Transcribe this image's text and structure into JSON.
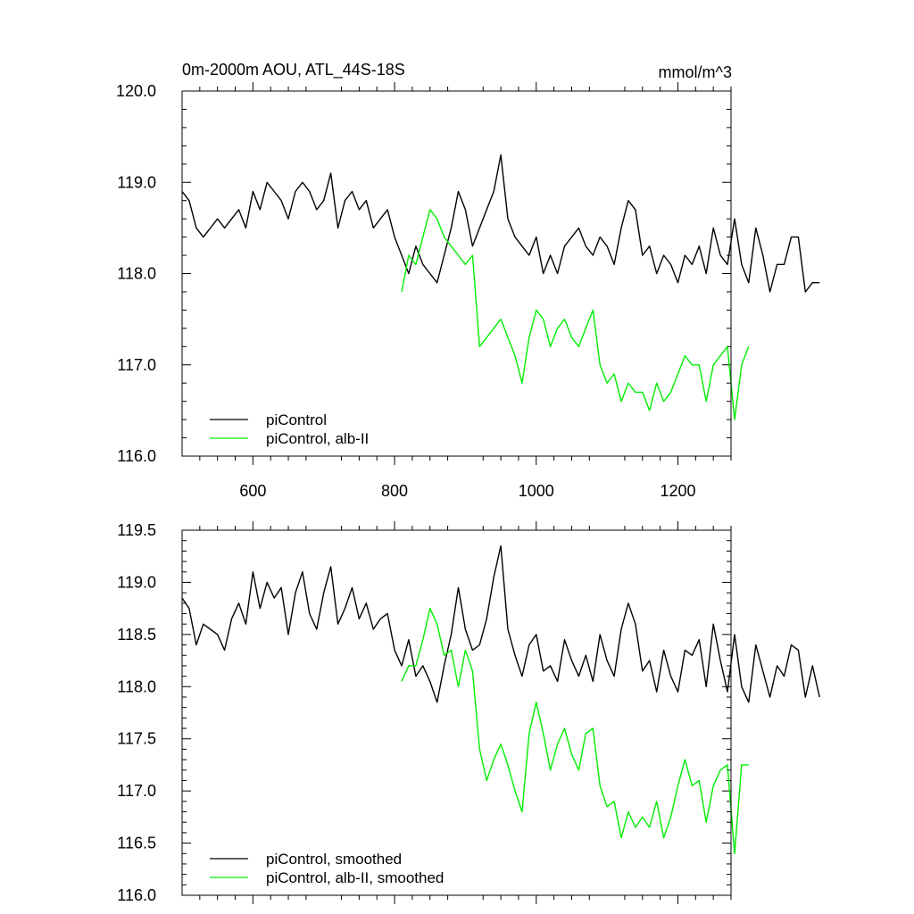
{
  "chart_data": [
    {
      "type": "line",
      "title": "0m-2000m AOU, ATL_44S-18S",
      "units": "mmol/m^3",
      "xlabel": "",
      "ylabel": "",
      "xlim": [
        500,
        1275
      ],
      "ylim": [
        116.0,
        120.0
      ],
      "x_ticks": [
        600,
        800,
        1000,
        1200
      ],
      "x_tick_labels": [
        "600",
        "800",
        "1000",
        "1200"
      ],
      "y_ticks": [
        116.0,
        117.0,
        118.0,
        119.0,
        120.0
      ],
      "y_tick_labels": [
        "116.0",
        "117.0",
        "118.0",
        "119.0",
        "120.0"
      ],
      "grid": false,
      "legend_position": "bottom-left",
      "series": [
        {
          "name": "piControl",
          "color": "#000000",
          "x_start": 500,
          "x_step": 10,
          "values": [
            118.9,
            118.8,
            118.5,
            118.4,
            118.5,
            118.6,
            118.5,
            118.6,
            118.7,
            118.5,
            118.9,
            118.7,
            119.0,
            118.9,
            118.8,
            118.6,
            118.9,
            119.0,
            118.9,
            118.7,
            118.8,
            119.1,
            118.5,
            118.8,
            118.9,
            118.7,
            118.8,
            118.5,
            118.6,
            118.7,
            118.4,
            118.2,
            118.0,
            118.3,
            118.1,
            118.0,
            117.9,
            118.2,
            118.5,
            118.9,
            118.7,
            118.3,
            118.5,
            118.7,
            118.9,
            119.3,
            118.6,
            118.4,
            118.3,
            118.2,
            118.4,
            118.0,
            118.2,
            118.0,
            118.3,
            118.4,
            118.5,
            118.3,
            118.2,
            118.4,
            118.3,
            118.1,
            118.5,
            118.8,
            118.7,
            118.2,
            118.3,
            118.0,
            118.2,
            118.1,
            117.9,
            118.2,
            118.1,
            118.3,
            118.0,
            118.5,
            118.2,
            118.1,
            118.6,
            118.1,
            117.9,
            118.5,
            118.2,
            117.8,
            118.1,
            118.1,
            118.4,
            118.4,
            117.8,
            117.9,
            117.9
          ]
        },
        {
          "name": "piControl, alb-II",
          "color": "#00ee00",
          "x_start": 810,
          "x_step": 10,
          "values": [
            117.8,
            118.2,
            118.1,
            118.4,
            118.7,
            118.6,
            118.4,
            118.3,
            118.2,
            118.1,
            118.2,
            117.2,
            117.3,
            117.4,
            117.5,
            117.3,
            117.1,
            116.8,
            117.3,
            117.6,
            117.5,
            117.2,
            117.4,
            117.5,
            117.3,
            117.2,
            117.4,
            117.6,
            117.0,
            116.8,
            116.9,
            116.6,
            116.8,
            116.7,
            116.7,
            116.5,
            116.8,
            116.6,
            116.7,
            116.9,
            117.1,
            117.0,
            117.0,
            116.6,
            117.0,
            117.1,
            117.2,
            116.4,
            117.0,
            117.2
          ]
        }
      ]
    },
    {
      "type": "line",
      "title": "",
      "xlabel": "",
      "ylabel": "",
      "xlim": [
        500,
        1275
      ],
      "ylim": [
        116.0,
        119.5
      ],
      "x_ticks": [
        600,
        800,
        1000,
        1200
      ],
      "y_ticks": [
        116.0,
        116.5,
        117.0,
        117.5,
        118.0,
        118.5,
        119.0,
        119.5
      ],
      "y_tick_labels": [
        "116.0",
        "116.5",
        "117.0",
        "117.5",
        "118.0",
        "118.5",
        "119.0",
        "119.5"
      ],
      "grid": false,
      "legend_position": "bottom-left",
      "series": [
        {
          "name": "piControl, smoothed",
          "color": "#000000",
          "x_start": 500,
          "x_step": 10,
          "values": [
            118.85,
            118.75,
            118.4,
            118.6,
            118.55,
            118.5,
            118.35,
            118.65,
            118.8,
            118.6,
            119.1,
            118.75,
            119.0,
            118.85,
            118.95,
            118.5,
            118.9,
            119.1,
            118.7,
            118.55,
            118.9,
            119.15,
            118.6,
            118.75,
            118.95,
            118.65,
            118.8,
            118.55,
            118.65,
            118.7,
            118.35,
            118.2,
            118.45,
            118.1,
            118.2,
            118.05,
            117.85,
            118.2,
            118.5,
            118.95,
            118.55,
            118.35,
            118.4,
            118.65,
            119.05,
            119.35,
            118.55,
            118.3,
            118.1,
            118.4,
            118.5,
            118.15,
            118.2,
            118.05,
            118.45,
            118.25,
            118.1,
            118.3,
            118.05,
            118.5,
            118.25,
            118.1,
            118.55,
            118.8,
            118.6,
            118.15,
            118.25,
            117.95,
            118.35,
            118.1,
            117.95,
            118.35,
            118.3,
            118.45,
            118.0,
            118.6,
            118.25,
            117.95,
            118.5,
            118.0,
            117.85,
            118.4,
            118.15,
            117.9,
            118.2,
            118.1,
            118.4,
            118.35,
            117.9,
            118.2,
            117.9
          ]
        },
        {
          "name": "piControl, alb-II, smoothed",
          "color": "#00ee00",
          "x_start": 810,
          "x_step": 10,
          "values": [
            118.05,
            118.2,
            118.2,
            118.45,
            118.75,
            118.6,
            118.3,
            118.35,
            118.0,
            118.35,
            118.15,
            117.4,
            117.1,
            117.3,
            117.45,
            117.25,
            117.0,
            116.8,
            117.55,
            117.85,
            117.55,
            117.2,
            117.45,
            117.6,
            117.35,
            117.2,
            117.55,
            117.6,
            117.05,
            116.85,
            116.9,
            116.55,
            116.8,
            116.65,
            116.75,
            116.65,
            116.9,
            116.55,
            116.75,
            117.05,
            117.3,
            117.05,
            117.1,
            116.7,
            117.05,
            117.2,
            117.25,
            116.4,
            117.25,
            117.25
          ]
        }
      ]
    }
  ]
}
